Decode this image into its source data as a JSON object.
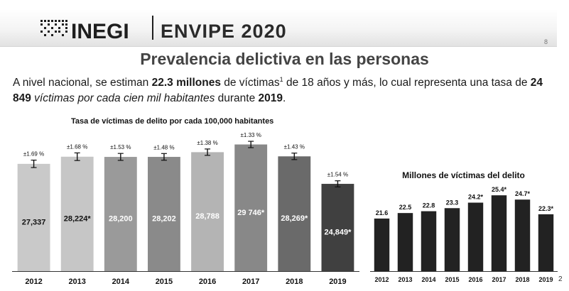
{
  "header": {
    "logo_text": "INEGI",
    "survey_name": "ENVIPE 2020",
    "slide_number": "8"
  },
  "page_title": "Prevalencia delictiva en las personas",
  "body": {
    "t1": "A nivel nacional, se estiman ",
    "t2": "22.3 millones",
    "t3": " de víctimas",
    "sup": "1",
    "t4": " de 18 años y más, lo cual representa una tasa de ",
    "t5": "24 849",
    "t6": " víctimas por cada cien mil habitantes",
    "t7": " durante ",
    "t8": "2019",
    "t9": "."
  },
  "footnote": "2",
  "colors": {
    "bars_left": [
      "#c9c9c9",
      "#c6c6c6",
      "#9a9a9a",
      "#8a8a8a",
      "#b4b4b4",
      "#888888",
      "#6a6a6a",
      "#404040"
    ],
    "bars_right": "#222222"
  },
  "chart_data": [
    {
      "type": "bar",
      "title": "Tasa de víctimas de delito por cada 100,000 habitantes",
      "categories": [
        "2012",
        "2013",
        "2014",
        "2015",
        "2016",
        "2017",
        "2018",
        "2019"
      ],
      "values": [
        27337,
        28224,
        28200,
        28202,
        28788,
        29746,
        28269,
        24849
      ],
      "value_labels": [
        "27,337",
        "28,224*",
        "28,200",
        "28,202",
        "28,788",
        "29 746*",
        "28,269*",
        "24,849*"
      ],
      "error_labels": [
        "±1.69 %",
        "±1.68 %",
        "±1.53 %",
        "±1.48 %",
        "±1.38 %",
        "±1.33 %",
        "±1.43 %",
        "±1.54 %"
      ],
      "error_pct": [
        1.69,
        1.68,
        1.53,
        1.48,
        1.38,
        1.33,
        1.43,
        1.54
      ],
      "ylim": [
        14000,
        30500
      ],
      "grid": false,
      "legend": "none"
    },
    {
      "type": "bar",
      "title": "Millones de víctimas del delito",
      "categories": [
        "2012",
        "2013",
        "2014",
        "2015",
        "2016",
        "2017",
        "2018",
        "2019"
      ],
      "values": [
        21.6,
        22.5,
        22.8,
        23.3,
        24.2,
        25.4,
        24.7,
        22.3
      ],
      "value_labels": [
        "21.6",
        "22.5",
        "22.8",
        "23.3",
        "24.2*",
        "25.4*",
        "24.7*",
        "22.3*"
      ],
      "ylim": [
        13,
        26
      ],
      "grid": false,
      "legend": "none"
    }
  ]
}
